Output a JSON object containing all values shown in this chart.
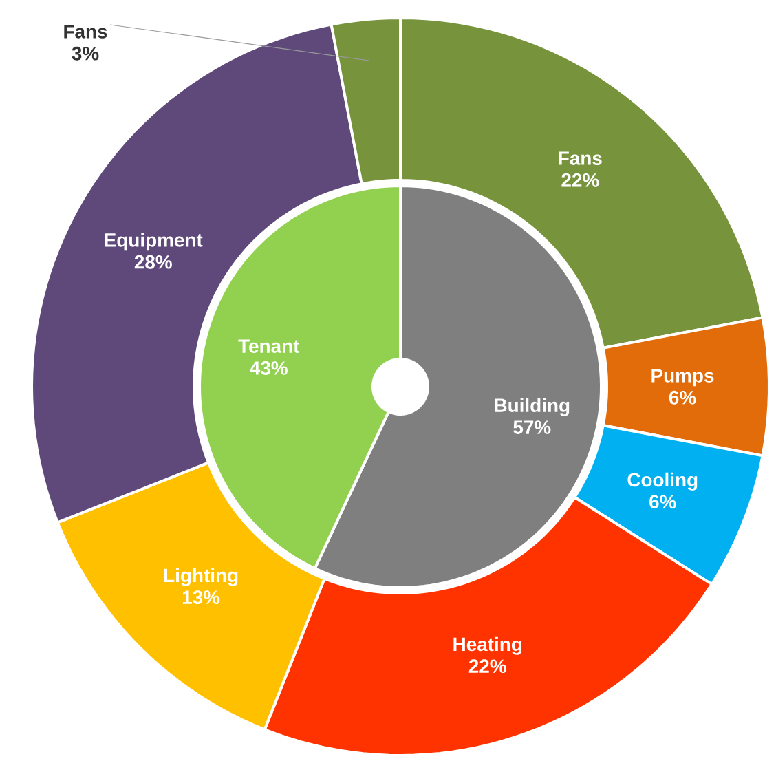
{
  "chart_data": [
    {
      "type": "donut",
      "categories": [
        "Fans",
        "Pumps",
        "Cooling",
        "Heating",
        "Lighting",
        "Equipment",
        "Fans"
      ],
      "values": [
        22,
        6,
        6,
        22,
        13,
        28,
        3
      ],
      "value_labels": [
        "22%",
        "6%",
        "6%",
        "22%",
        "13%",
        "28%",
        "3%"
      ],
      "colors": [
        "#77933c",
        "#e36c0a",
        "#00b0f0",
        "#ff3300",
        "#ffc000",
        "#5f497a",
        "#77933c"
      ]
    },
    {
      "type": "donut",
      "categories": [
        "Building",
        "Tenant"
      ],
      "values": [
        57,
        43
      ],
      "value_labels": [
        "57%",
        "43%"
      ],
      "colors": [
        "#7f7f7f",
        "#92d050"
      ]
    }
  ]
}
